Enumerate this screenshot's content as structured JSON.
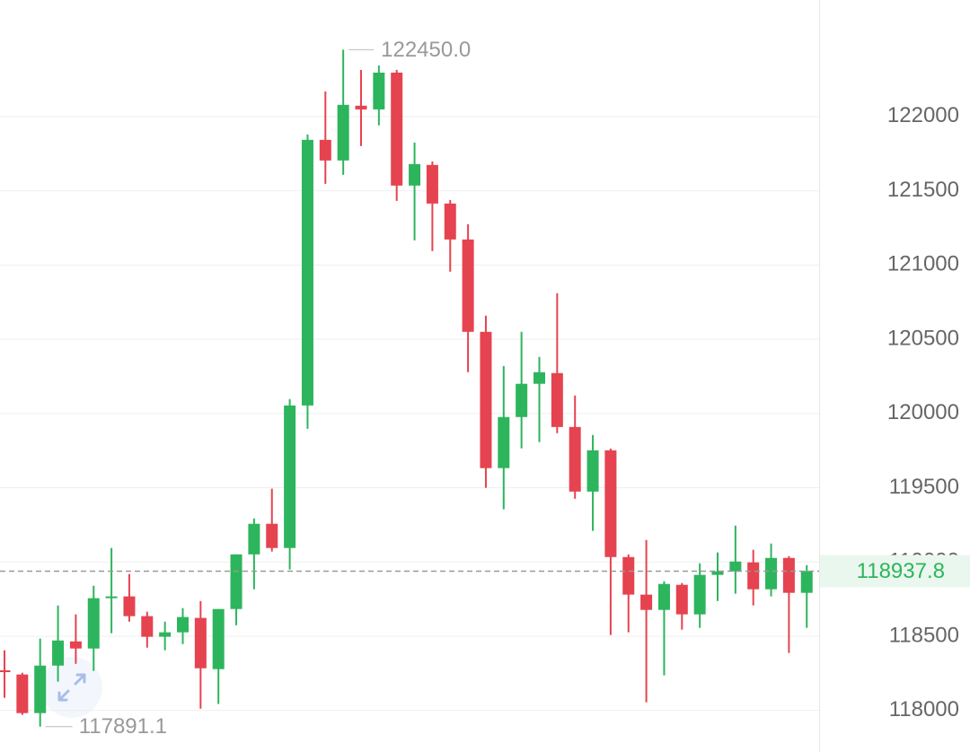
{
  "chart_data": {
    "type": "candlestick",
    "up_color": "#2db55d",
    "down_color": "#e5434f",
    "ylim": [
      117720,
      122785
    ],
    "yticks": [
      118000,
      118500,
      119000,
      119500,
      120000,
      120500,
      121000,
      121500,
      122000
    ],
    "grid": true,
    "open": [
      118270,
      118242,
      117982,
      118302,
      118465,
      118417,
      118756,
      118768,
      118635,
      118496,
      118526,
      118623,
      118278,
      118683,
      119051,
      119257,
      119094,
      120054,
      121843,
      121704,
      122073,
      122048,
      122296,
      121535,
      121674,
      121414,
      121172,
      120550,
      119632,
      119976,
      120200,
      120272,
      119909,
      119474,
      119752,
      119033,
      118780,
      118677,
      118846,
      118647,
      118913,
      118937,
      118997,
      118816,
      119027,
      118792
    ],
    "high": [
      118405,
      118254,
      118484,
      118707,
      118647,
      118840,
      119094,
      118919,
      118665,
      118598,
      118689,
      118737,
      118683,
      119051,
      119293,
      119493,
      120097,
      121879,
      122169,
      122450,
      122314,
      122344,
      122314,
      121825,
      121698,
      121438,
      121275,
      120659,
      120320,
      120550,
      120381,
      120810,
      120121,
      119855,
      119764,
      119051,
      119148,
      118870,
      118858,
      118991,
      119064,
      119245,
      119082,
      119124,
      119039,
      118979
    ],
    "low": [
      118085,
      117970,
      117891.1,
      118194,
      118314,
      118266,
      118520,
      118598,
      118423,
      118405,
      118447,
      118012,
      118043,
      118574,
      118816,
      119070,
      118949,
      119897,
      121547,
      121607,
      121801,
      121940,
      121432,
      121166,
      121094,
      120955,
      120278,
      119499,
      119354,
      119765,
      119807,
      119867,
      119426,
      119209,
      118508,
      118526,
      118055,
      118236,
      118544,
      118556,
      118737,
      118786,
      118707,
      118768,
      118387,
      118556
    ],
    "close": [
      118260,
      117982,
      118302,
      118471,
      118417,
      118756,
      118768,
      118635,
      118496,
      118526,
      118629,
      118284,
      118683,
      119051,
      119257,
      119094,
      120054,
      121843,
      121704,
      122079,
      122048,
      122296,
      121535,
      121680,
      121414,
      121172,
      120550,
      119632,
      119976,
      120200,
      120278,
      119909,
      119474,
      119752,
      119033,
      118780,
      118677,
      118852,
      118647,
      118913,
      118937,
      119003,
      118816,
      119027,
      118792,
      118937.8
    ],
    "max_label": {
      "value": 122450,
      "label": "122450.0"
    },
    "min_label": {
      "value": 117891.1,
      "label": "117891.1"
    },
    "last_price": {
      "value": 118937.8,
      "label": "118937.8"
    }
  }
}
